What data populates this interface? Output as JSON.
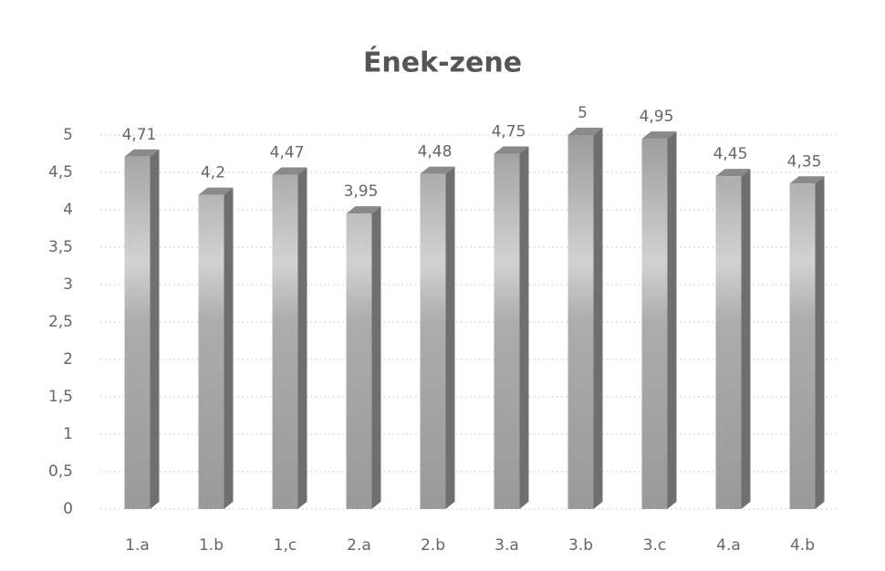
{
  "chart_data": {
    "type": "bar3d",
    "title": "Ének-zene",
    "categories": [
      "1.a",
      "1.b",
      "1,c",
      "2.a",
      "2.b",
      "3.a",
      "3.b",
      "3.c",
      "4.a",
      "4.b"
    ],
    "values": [
      4.71,
      4.2,
      4.47,
      3.95,
      4.48,
      4.75,
      5,
      4.95,
      4.45,
      4.35
    ],
    "value_labels": [
      "4,71",
      "4,2",
      "4,47",
      "3,95",
      "4,48",
      "4,75",
      "5",
      "4,95",
      "4,45",
      "4,35"
    ],
    "color": "#a8a8a8",
    "ylim": [
      0,
      5
    ],
    "yticks": [
      0,
      {
        "value": 0.5,
        "label": "0,5"
      },
      1,
      {
        "value": 1.5,
        "label": "1,5"
      },
      2,
      {
        "value": 2.5,
        "label": "2,5"
      },
      3,
      {
        "value": 3.5,
        "label": "3,5"
      },
      4,
      {
        "value": 4.5,
        "label": "4,5"
      },
      5
    ],
    "grid": true
  }
}
